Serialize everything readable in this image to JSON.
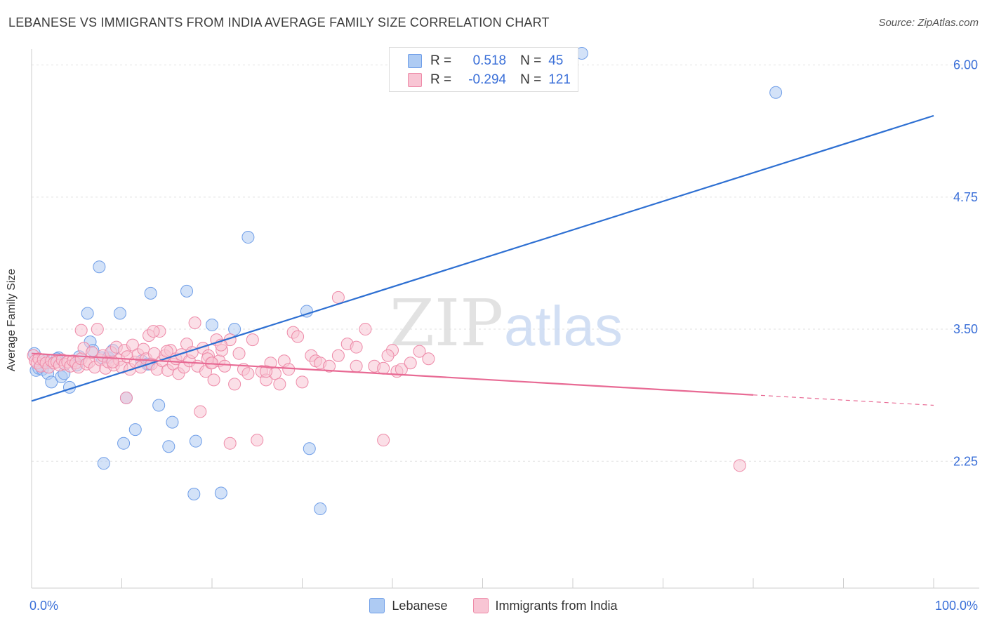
{
  "title": "LEBANESE VS IMMIGRANTS FROM INDIA AVERAGE FAMILY SIZE CORRELATION CHART",
  "source": "Source: ZipAtlas.com",
  "watermark": {
    "zip": "ZIP",
    "atlas": "atlas"
  },
  "stats": [
    {
      "r_label": "R =",
      "r_value": "0.518",
      "n_label": "N =",
      "n_value": "45",
      "color": "#aecbf3",
      "border": "#6f9ee8"
    },
    {
      "r_label": "R =",
      "r_value": "-0.294",
      "n_label": "N =",
      "n_value": "121",
      "color": "#f8c5d4",
      "border": "#ee8aa8"
    }
  ],
  "chart_data": {
    "type": "scatter",
    "title": "LEBANESE VS IMMIGRANTS FROM INDIA AVERAGE FAMILY SIZE CORRELATION CHART",
    "xlabel": "",
    "ylabel": "Average Family Size",
    "xlim": [
      0,
      100
    ],
    "ylim": [
      1.05,
      6.15
    ],
    "x_tick_labels": [
      "0.0%",
      "100.0%"
    ],
    "y_ticks": [
      6.0,
      4.75,
      3.5,
      2.25
    ],
    "y_tick_labels": [
      "6.00",
      "4.75",
      "3.50",
      "2.25"
    ],
    "grid": true,
    "legend_position": "bottom",
    "series": [
      {
        "name": "Lebanese",
        "color": "#aecbf3",
        "stroke": "#6f9ee8",
        "line_color": "#2d6fd2",
        "trend": {
          "x": [
            0,
            100
          ],
          "y": [
            2.82,
            5.52
          ],
          "dashed_from": null
        },
        "points": [
          [
            0.3,
            3.27
          ],
          [
            0.5,
            3.11
          ],
          [
            0.8,
            3.13
          ],
          [
            1.2,
            3.12
          ],
          [
            1.8,
            3.08
          ],
          [
            2.2,
            3.0
          ],
          [
            3.0,
            3.23
          ],
          [
            3.3,
            3.05
          ],
          [
            3.6,
            3.08
          ],
          [
            4.2,
            2.95
          ],
          [
            5.0,
            3.16
          ],
          [
            5.3,
            3.24
          ],
          [
            6.2,
            3.65
          ],
          [
            6.5,
            3.38
          ],
          [
            6.8,
            3.3
          ],
          [
            7.5,
            4.09
          ],
          [
            7.8,
            3.23
          ],
          [
            8.0,
            2.23
          ],
          [
            8.5,
            3.23
          ],
          [
            9.0,
            3.3
          ],
          [
            9.8,
            3.65
          ],
          [
            10.2,
            2.42
          ],
          [
            10.5,
            2.85
          ],
          [
            11.5,
            2.55
          ],
          [
            12.2,
            3.2
          ],
          [
            12.8,
            3.17
          ],
          [
            13.0,
            3.17
          ],
          [
            13.2,
            3.84
          ],
          [
            14.1,
            2.78
          ],
          [
            15.2,
            2.39
          ],
          [
            15.6,
            2.62
          ],
          [
            17.2,
            3.86
          ],
          [
            18.0,
            1.94
          ],
          [
            18.2,
            2.44
          ],
          [
            20.0,
            3.54
          ],
          [
            21.0,
            1.95
          ],
          [
            22.5,
            3.5
          ],
          [
            24.0,
            4.37
          ],
          [
            30.5,
            3.67
          ],
          [
            30.8,
            2.37
          ],
          [
            32.0,
            1.8
          ],
          [
            61.0,
            6.11
          ],
          [
            82.5,
            5.74
          ],
          [
            1.5,
            3.2
          ],
          [
            2.8,
            3.22
          ]
        ]
      },
      {
        "name": "Immigrants from India",
        "color": "#f8c5d4",
        "stroke": "#ee8aa8",
        "line_color": "#e86a94",
        "trend": {
          "x": [
            0,
            100
          ],
          "y": [
            3.27,
            2.78
          ],
          "dashed_from": 80
        },
        "points": [
          [
            0.2,
            3.25
          ],
          [
            0.4,
            3.2
          ],
          [
            0.6,
            3.18
          ],
          [
            0.8,
            3.22
          ],
          [
            1.0,
            3.15
          ],
          [
            1.3,
            3.21
          ],
          [
            1.6,
            3.18
          ],
          [
            1.9,
            3.14
          ],
          [
            2.2,
            3.2
          ],
          [
            2.5,
            3.18
          ],
          [
            2.8,
            3.19
          ],
          [
            3.1,
            3.16
          ],
          [
            3.4,
            3.21
          ],
          [
            3.7,
            3.17
          ],
          [
            4.0,
            3.19
          ],
          [
            4.3,
            3.15
          ],
          [
            4.6,
            3.2
          ],
          [
            4.9,
            3.18
          ],
          [
            5.2,
            3.14
          ],
          [
            5.5,
            3.22
          ],
          [
            5.8,
            3.32
          ],
          [
            6.1,
            3.17
          ],
          [
            6.4,
            3.19
          ],
          [
            6.7,
            3.28
          ],
          [
            7.0,
            3.14
          ],
          [
            7.3,
            3.5
          ],
          [
            7.6,
            3.21
          ],
          [
            7.9,
            3.25
          ],
          [
            8.2,
            3.13
          ],
          [
            8.5,
            3.19
          ],
          [
            8.8,
            3.28
          ],
          [
            9.1,
            3.16
          ],
          [
            9.4,
            3.33
          ],
          [
            9.7,
            3.21
          ],
          [
            10.0,
            3.14
          ],
          [
            10.3,
            3.3
          ],
          [
            10.6,
            3.24
          ],
          [
            10.9,
            3.12
          ],
          [
            11.2,
            3.35
          ],
          [
            11.5,
            3.19
          ],
          [
            11.8,
            3.26
          ],
          [
            12.1,
            3.14
          ],
          [
            12.4,
            3.31
          ],
          [
            12.7,
            3.22
          ],
          [
            13.0,
            3.44
          ],
          [
            13.3,
            3.17
          ],
          [
            13.6,
            3.27
          ],
          [
            13.9,
            3.12
          ],
          [
            14.2,
            3.48
          ],
          [
            14.5,
            3.2
          ],
          [
            14.8,
            3.25
          ],
          [
            15.1,
            3.11
          ],
          [
            15.4,
            3.3
          ],
          [
            15.7,
            3.17
          ],
          [
            16.0,
            3.22
          ],
          [
            16.3,
            3.08
          ],
          [
            16.6,
            3.26
          ],
          [
            16.9,
            3.14
          ],
          [
            17.2,
            3.36
          ],
          [
            17.5,
            3.2
          ],
          [
            17.8,
            3.28
          ],
          [
            18.1,
            3.56
          ],
          [
            18.4,
            3.15
          ],
          [
            18.7,
            2.72
          ],
          [
            19.0,
            3.32
          ],
          [
            19.3,
            3.1
          ],
          [
            19.6,
            3.25
          ],
          [
            19.9,
            3.18
          ],
          [
            20.2,
            3.02
          ],
          [
            20.5,
            3.4
          ],
          [
            20.8,
            3.2
          ],
          [
            21.1,
            3.3
          ],
          [
            21.4,
            3.15
          ],
          [
            22.0,
            3.4
          ],
          [
            22.5,
            2.98
          ],
          [
            23.0,
            3.27
          ],
          [
            23.5,
            3.12
          ],
          [
            24.0,
            3.08
          ],
          [
            24.5,
            3.4
          ],
          [
            25.0,
            2.45
          ],
          [
            25.5,
            3.1
          ],
          [
            26.0,
            3.02
          ],
          [
            26.5,
            3.18
          ],
          [
            27.0,
            3.08
          ],
          [
            27.5,
            2.98
          ],
          [
            28.0,
            3.2
          ],
          [
            28.5,
            3.12
          ],
          [
            29.0,
            3.47
          ],
          [
            29.5,
            3.43
          ],
          [
            30.0,
            3.0
          ],
          [
            31.0,
            3.25
          ],
          [
            31.5,
            3.2
          ],
          [
            32.0,
            3.18
          ],
          [
            33.0,
            3.15
          ],
          [
            34.0,
            3.25
          ],
          [
            35.0,
            3.36
          ],
          [
            36.0,
            3.33
          ],
          [
            37.0,
            3.5
          ],
          [
            38.0,
            3.15
          ],
          [
            39.0,
            3.13
          ],
          [
            40.0,
            3.3
          ],
          [
            10.5,
            2.85
          ],
          [
            13.5,
            3.48
          ],
          [
            5.5,
            3.49
          ],
          [
            19.5,
            3.22
          ],
          [
            21.0,
            3.35
          ],
          [
            22.0,
            2.42
          ],
          [
            26.0,
            3.1
          ],
          [
            34.0,
            3.8
          ],
          [
            36.0,
            3.15
          ],
          [
            39.5,
            3.25
          ],
          [
            40.5,
            3.1
          ],
          [
            41.0,
            3.12
          ],
          [
            42.0,
            3.18
          ],
          [
            43.0,
            3.29
          ],
          [
            44.0,
            3.22
          ],
          [
            20.0,
            3.18
          ],
          [
            15.0,
            3.29
          ],
          [
            9.0,
            3.19
          ],
          [
            39.0,
            2.45
          ],
          [
            78.5,
            2.21
          ]
        ]
      }
    ]
  }
}
